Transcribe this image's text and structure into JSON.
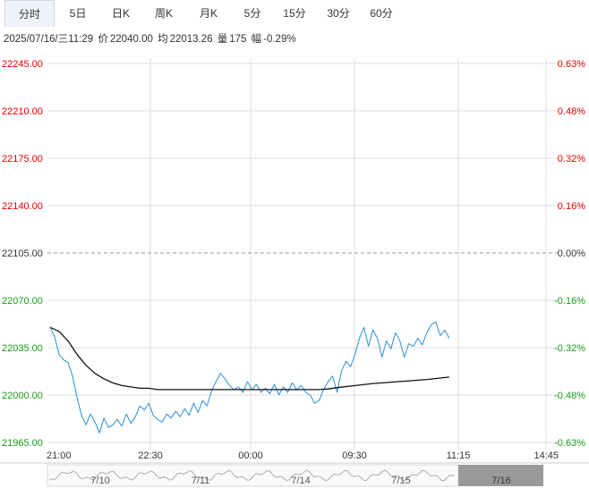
{
  "tabs": [
    {
      "label": "分时",
      "active": true
    },
    {
      "label": "5日"
    },
    {
      "label": "日K"
    },
    {
      "label": "周K"
    },
    {
      "label": "月K"
    },
    {
      "label": "5分"
    },
    {
      "label": "15分"
    },
    {
      "label": "30分"
    },
    {
      "label": "60分"
    }
  ],
  "info": {
    "datetime": "2025/07/16/三11:29",
    "price_label": "价",
    "price": "22040.00",
    "avg_label": "均",
    "avg": "22013.26",
    "vol_label": "量",
    "vol": "175",
    "chg_label": "幅",
    "chg": "-0.29%"
  },
  "colors": {
    "up": "#e60000",
    "down": "#1a9c1a",
    "price_line": "#2a8fd4",
    "avg_line": "#111111",
    "grid": "#dddddd"
  },
  "chart_data": {
    "type": "line",
    "y_left_ticks": [
      "22245.00",
      "22210.00",
      "22175.00",
      "22140.00",
      "22105.00",
      "22070.00",
      "22035.00",
      "22000.00",
      "21965.00"
    ],
    "y_right_ticks": [
      "0.63%",
      "0.48%",
      "0.32%",
      "0.16%",
      "0.00%",
      "-0.16%",
      "-0.32%",
      "-0.48%",
      "-0.63%"
    ],
    "x_ticks": [
      "21:00",
      "22:30",
      "00:00",
      "09:30",
      "11:15",
      "14:45"
    ],
    "prev_close": 22105,
    "ylim": [
      21965,
      22245
    ],
    "x_minutes_range": [
      0,
      555
    ],
    "series": [
      {
        "key": "price",
        "points": [
          [
            0,
            22050
          ],
          [
            5,
            22043
          ],
          [
            10,
            22030
          ],
          [
            15,
            22026
          ],
          [
            20,
            22024
          ],
          [
            25,
            22014
          ],
          [
            30,
            21998
          ],
          [
            35,
            21985
          ],
          [
            40,
            21978
          ],
          [
            45,
            21986
          ],
          [
            50,
            21980
          ],
          [
            55,
            21972
          ],
          [
            60,
            21983
          ],
          [
            65,
            21976
          ],
          [
            70,
            21978
          ],
          [
            75,
            21982
          ],
          [
            80,
            21977
          ],
          [
            85,
            21986
          ],
          [
            90,
            21979
          ],
          [
            95,
            21984
          ],
          [
            100,
            21992
          ],
          [
            105,
            21989
          ],
          [
            110,
            21994
          ],
          [
            115,
            21985
          ],
          [
            120,
            21982
          ],
          [
            125,
            21980
          ],
          [
            130,
            21986
          ],
          [
            135,
            21983
          ],
          [
            140,
            21988
          ],
          [
            145,
            21984
          ],
          [
            150,
            21990
          ],
          [
            155,
            21985
          ],
          [
            160,
            21994
          ],
          [
            165,
            21987
          ],
          [
            170,
            21996
          ],
          [
            175,
            21992
          ],
          [
            180,
            22003
          ],
          [
            185,
            22010
          ],
          [
            190,
            22016
          ],
          [
            195,
            22012
          ],
          [
            200,
            22007
          ],
          [
            205,
            22004
          ],
          [
            210,
            22006
          ],
          [
            215,
            22002
          ],
          [
            220,
            22010
          ],
          [
            225,
            22004
          ],
          [
            230,
            22008
          ],
          [
            235,
            22002
          ],
          [
            240,
            22005
          ],
          [
            245,
            22001
          ],
          [
            250,
            22008
          ],
          [
            255,
            22000
          ],
          [
            260,
            22006
          ],
          [
            265,
            22002
          ],
          [
            270,
            22009
          ],
          [
            275,
            22004
          ],
          [
            280,
            22007
          ],
          [
            285,
            22002
          ],
          [
            290,
            22000
          ],
          [
            295,
            21994
          ],
          [
            300,
            21996
          ],
          [
            305,
            22004
          ],
          [
            310,
            22010
          ],
          [
            315,
            22014
          ],
          [
            320,
            22002
          ],
          [
            325,
            22018
          ],
          [
            330,
            22025
          ],
          [
            335,
            22021
          ],
          [
            340,
            22030
          ],
          [
            345,
            22042
          ],
          [
            350,
            22050
          ],
          [
            355,
            22036
          ],
          [
            360,
            22048
          ],
          [
            365,
            22042
          ],
          [
            370,
            22028
          ],
          [
            375,
            22040
          ],
          [
            380,
            22034
          ],
          [
            385,
            22046
          ],
          [
            390,
            22040
          ],
          [
            395,
            22028
          ],
          [
            400,
            22038
          ],
          [
            405,
            22036
          ],
          [
            410,
            22042
          ],
          [
            415,
            22037
          ],
          [
            420,
            22046
          ],
          [
            425,
            22052
          ],
          [
            430,
            22054
          ],
          [
            435,
            22044
          ],
          [
            440,
            22048
          ],
          [
            445,
            22042
          ]
        ]
      },
      {
        "key": "avg",
        "points": [
          [
            0,
            22050
          ],
          [
            10,
            22047
          ],
          [
            20,
            22040
          ],
          [
            30,
            22030
          ],
          [
            40,
            22022
          ],
          [
            50,
            22016
          ],
          [
            60,
            22012
          ],
          [
            70,
            22009
          ],
          [
            80,
            22007
          ],
          [
            90,
            22006
          ],
          [
            100,
            22005
          ],
          [
            110,
            22005
          ],
          [
            120,
            22004
          ],
          [
            130,
            22004
          ],
          [
            140,
            22004
          ],
          [
            160,
            22004
          ],
          [
            180,
            22004
          ],
          [
            200,
            22004
          ],
          [
            220,
            22004
          ],
          [
            240,
            22004
          ],
          [
            260,
            22004
          ],
          [
            280,
            22004
          ],
          [
            300,
            22004
          ],
          [
            310,
            22004.5
          ],
          [
            320,
            22005.5
          ],
          [
            340,
            22007
          ],
          [
            360,
            22008.5
          ],
          [
            380,
            22009.5
          ],
          [
            400,
            22010.5
          ],
          [
            420,
            22011.5
          ],
          [
            445,
            22013.26
          ]
        ]
      }
    ]
  },
  "timeline": {
    "dates": [
      "7/10",
      "7/11",
      "7/14",
      "7/15",
      "7/16"
    ]
  }
}
